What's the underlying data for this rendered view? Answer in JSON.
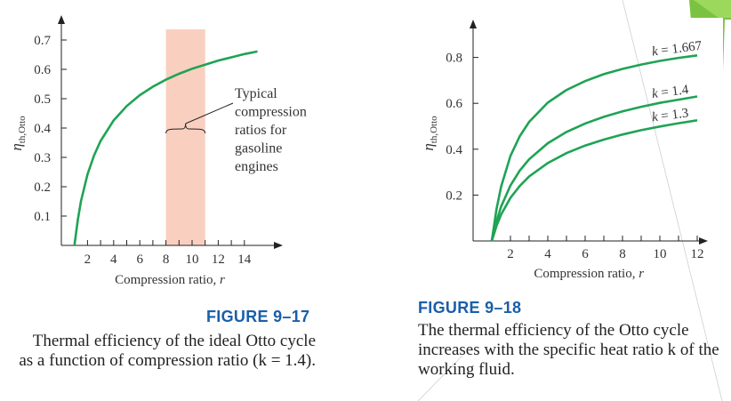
{
  "chart_data": [
    {
      "type": "line",
      "xlabel": "Compression ratio, r",
      "ylabel": "η_th,Otto",
      "xlim": [
        0,
        15
      ],
      "ylim": [
        0,
        0.75
      ],
      "xticks": [
        2,
        4,
        6,
        8,
        10,
        12,
        14
      ],
      "yticks": [
        0.1,
        0.2,
        0.3,
        0.4,
        0.5,
        0.6,
        0.7
      ],
      "ytick_labels": [
        "0.1",
        "0.2",
        "0.3",
        "0.4",
        "0.5",
        "0.6",
        "0.7"
      ],
      "series": [
        {
          "k": 1.4,
          "color": "#1fa354",
          "x": [
            1,
            1.25,
            1.5,
            2,
            2.5,
            3,
            4,
            5,
            6,
            7,
            8,
            9,
            10,
            11,
            12,
            13,
            14,
            15
          ],
          "y": [
            0,
            0.085,
            0.15,
            0.242,
            0.307,
            0.356,
            0.426,
            0.475,
            0.512,
            0.541,
            0.565,
            0.585,
            0.602,
            0.616,
            0.63,
            0.641,
            0.652,
            0.661
          ]
        }
      ],
      "band": {
        "x_range": [
          8,
          11
        ],
        "color": "#f9cfc0",
        "label": [
          "Typical",
          "compression",
          "ratios for",
          "gasoline",
          "engines"
        ]
      }
    },
    {
      "type": "line",
      "xlabel": "Compression ratio, r",
      "ylabel": "η_th,Otto",
      "xlim": [
        0,
        12.5
      ],
      "ylim": [
        0,
        0.95
      ],
      "xticks": [
        2,
        4,
        6,
        8,
        10,
        12
      ],
      "yticks": [
        0.2,
        0.4,
        0.6,
        0.8
      ],
      "ytick_labels": [
        "0.2",
        "0.4",
        "0.6",
        "0.8"
      ],
      "series": [
        {
          "name": "k = 1.667",
          "color": "#1fa354",
          "x": [
            1,
            1.25,
            1.5,
            2,
            2.5,
            3,
            4,
            5,
            6,
            7,
            8,
            9,
            10,
            11,
            12
          ],
          "y": [
            0,
            0.138,
            0.237,
            0.371,
            0.457,
            0.519,
            0.603,
            0.658,
            0.697,
            0.727,
            0.75,
            0.769,
            0.785,
            0.798,
            0.809
          ]
        },
        {
          "name": "k = 1.4",
          "color": "#1fa354",
          "x": [
            1,
            1.25,
            1.5,
            2,
            2.5,
            3,
            4,
            5,
            6,
            7,
            8,
            9,
            10,
            11,
            12
          ],
          "y": [
            0,
            0.085,
            0.15,
            0.242,
            0.307,
            0.356,
            0.426,
            0.475,
            0.512,
            0.541,
            0.565,
            0.585,
            0.602,
            0.616,
            0.63
          ]
        },
        {
          "name": "k = 1.3",
          "color": "#1fa354",
          "x": [
            1,
            1.25,
            1.5,
            2,
            2.5,
            3,
            4,
            5,
            6,
            7,
            8,
            9,
            10,
            11,
            12
          ],
          "y": [
            0,
            0.065,
            0.115,
            0.188,
            0.24,
            0.281,
            0.34,
            0.383,
            0.416,
            0.442,
            0.464,
            0.483,
            0.499,
            0.513,
            0.526
          ]
        }
      ]
    }
  ],
  "captions": {
    "fig1_title": "FIGURE 9–17",
    "fig1_text": "Thermal efficiency of the ideal Otto cycle as a function of compression ratio (k = 1.4).",
    "fig2_title": "FIGURE 9–18",
    "fig2_text": "The thermal efficiency of the Otto cycle increases with the specific heat ratio k of the working fluid."
  },
  "colors": {
    "accent_title": "#1a5fa8",
    "curve": "#1fa354",
    "band": "#f9cfc0",
    "deco_green": "#7cc242"
  }
}
